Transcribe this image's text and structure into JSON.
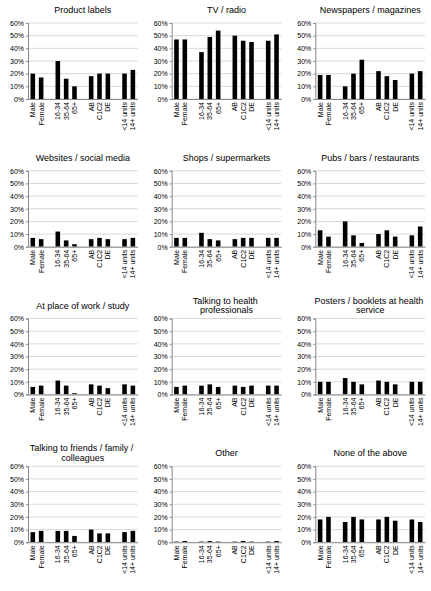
{
  "chart_data": [
    {
      "type": "bar",
      "title": "Product labels",
      "categories": [
        "Male",
        "Female",
        null,
        "16-34",
        "35-64",
        "65+",
        null,
        "AB",
        "C1C2",
        "DE",
        null,
        "<14 units",
        "14+ units"
      ],
      "values": [
        20,
        17,
        null,
        30,
        16,
        10,
        null,
        18,
        20,
        20,
        null,
        20,
        23
      ],
      "color": "#000000",
      "ylim": [
        0,
        60
      ],
      "yticks": [
        {
          "value": 0,
          "label": "0%"
        },
        {
          "value": 10,
          "label": "10%"
        },
        {
          "value": 20,
          "label": "20%"
        },
        {
          "value": 30,
          "label": "30%"
        },
        {
          "value": 40,
          "label": "40%"
        },
        {
          "value": 50,
          "label": "50%"
        },
        {
          "value": 60,
          "label": "60%"
        }
      ],
      "grid": true
    },
    {
      "type": "bar",
      "title": "TV / radio",
      "categories": [
        "Male",
        "Female",
        null,
        "16-34",
        "35-64",
        "65+",
        null,
        "AB",
        "C1C2",
        "DE",
        null,
        "<14 units",
        "14+ units"
      ],
      "values": [
        47,
        47,
        null,
        37,
        49,
        54,
        null,
        50,
        46,
        45,
        null,
        46,
        51
      ],
      "color": "#000000",
      "ylim": [
        0,
        60
      ],
      "yticks": [
        {
          "value": 0,
          "label": "0%"
        },
        {
          "value": 10,
          "label": "10%"
        },
        {
          "value": 20,
          "label": "20%"
        },
        {
          "value": 30,
          "label": "30%"
        },
        {
          "value": 40,
          "label": "40%"
        },
        {
          "value": 50,
          "label": "50%"
        },
        {
          "value": 60,
          "label": "60%"
        }
      ],
      "grid": true
    },
    {
      "type": "bar",
      "title": "Newspapers / magazines",
      "categories": [
        "Male",
        "Female",
        null,
        "16-34",
        "35-64",
        "65+",
        null,
        "AB",
        "C1C2",
        "DE",
        null,
        "<14 units",
        "14+ units"
      ],
      "values": [
        19,
        19,
        null,
        10,
        20,
        31,
        null,
        22,
        18,
        15,
        null,
        20,
        22
      ],
      "color": "#000000",
      "ylim": [
        0,
        60
      ],
      "yticks": [
        {
          "value": 0,
          "label": "0%"
        },
        {
          "value": 10,
          "label": "10%"
        },
        {
          "value": 20,
          "label": "20%"
        },
        {
          "value": 30,
          "label": "30%"
        },
        {
          "value": 40,
          "label": "40%"
        },
        {
          "value": 50,
          "label": "50%"
        },
        {
          "value": 60,
          "label": "60%"
        }
      ],
      "grid": true
    },
    {
      "type": "bar",
      "title": "Websites / social media",
      "categories": [
        "Male",
        "Female",
        null,
        "16-34",
        "35-64",
        "65+",
        null,
        "AB",
        "C1C2",
        "DE",
        null,
        "<14 units",
        "14+ units"
      ],
      "values": [
        7,
        6,
        null,
        12,
        5,
        2,
        null,
        6,
        7,
        6,
        null,
        6,
        7
      ],
      "color": "#000000",
      "ylim": [
        0,
        60
      ],
      "yticks": [
        {
          "value": 0,
          "label": "0%"
        },
        {
          "value": 10,
          "label": "10%"
        },
        {
          "value": 20,
          "label": "20%"
        },
        {
          "value": 30,
          "label": "30%"
        },
        {
          "value": 40,
          "label": "40%"
        },
        {
          "value": 50,
          "label": "50%"
        },
        {
          "value": 60,
          "label": "60%"
        }
      ],
      "grid": true
    },
    {
      "type": "bar",
      "title": "Shops / supermarkets",
      "categories": [
        "Male",
        "Female",
        null,
        "16-34",
        "35-64",
        "65+",
        null,
        "AB",
        "C1C2",
        "DE",
        null,
        "<14 units",
        "14+ units"
      ],
      "values": [
        7,
        7,
        null,
        11,
        6,
        5,
        null,
        6,
        7,
        7,
        null,
        7,
        7
      ],
      "color": "#000000",
      "ylim": [
        0,
        60
      ],
      "yticks": [
        {
          "value": 0,
          "label": "0%"
        },
        {
          "value": 10,
          "label": "10%"
        },
        {
          "value": 20,
          "label": "20%"
        },
        {
          "value": 30,
          "label": "30%"
        },
        {
          "value": 40,
          "label": "40%"
        },
        {
          "value": 50,
          "label": "50%"
        },
        {
          "value": 60,
          "label": "60%"
        }
      ],
      "grid": true
    },
    {
      "type": "bar",
      "title": "Pubs / bars / restaurants",
      "categories": [
        "Male",
        "Female",
        null,
        "16-34",
        "35-64",
        "65+",
        null,
        "AB",
        "C1C2",
        "DE",
        null,
        "<14 units",
        "14+ units"
      ],
      "values": [
        13,
        8,
        null,
        20,
        9,
        3,
        null,
        10,
        13,
        8,
        null,
        9,
        16
      ],
      "color": "#000000",
      "ylim": [
        0,
        60
      ],
      "yticks": [
        {
          "value": 0,
          "label": "0%"
        },
        {
          "value": 10,
          "label": "10%"
        },
        {
          "value": 20,
          "label": "20%"
        },
        {
          "value": 30,
          "label": "30%"
        },
        {
          "value": 40,
          "label": "40%"
        },
        {
          "value": 50,
          "label": "50%"
        },
        {
          "value": 60,
          "label": "60%"
        }
      ],
      "grid": true
    },
    {
      "type": "bar",
      "title": "At place of work / study",
      "categories": [
        "Male",
        "Female",
        null,
        "16-34",
        "35-64",
        "65+",
        null,
        "AB",
        "C1C2",
        "DE",
        null,
        "<14 units",
        "14+ units"
      ],
      "values": [
        6,
        7,
        null,
        11,
        7,
        1,
        null,
        8,
        7,
        5,
        null,
        8,
        7
      ],
      "color": "#000000",
      "ylim": [
        0,
        60
      ],
      "yticks": [
        {
          "value": 0,
          "label": "0%"
        },
        {
          "value": 10,
          "label": "10%"
        },
        {
          "value": 20,
          "label": "20%"
        },
        {
          "value": 30,
          "label": "30%"
        },
        {
          "value": 40,
          "label": "40%"
        },
        {
          "value": 50,
          "label": "50%"
        },
        {
          "value": 60,
          "label": "60%"
        }
      ],
      "grid": true
    },
    {
      "type": "bar",
      "title": "Talking to health professionals",
      "categories": [
        "Male",
        "Female",
        null,
        "16-34",
        "35-64",
        "65+",
        null,
        "AB",
        "C1C2",
        "DE",
        null,
        "<14 units",
        "14+ units"
      ],
      "values": [
        6,
        7,
        null,
        7,
        8,
        6,
        null,
        7,
        6,
        7,
        null,
        7,
        7
      ],
      "color": "#000000",
      "ylim": [
        0,
        60
      ],
      "yticks": [
        {
          "value": 0,
          "label": "0%"
        },
        {
          "value": 10,
          "label": "10%"
        },
        {
          "value": 20,
          "label": "20%"
        },
        {
          "value": 30,
          "label": "30%"
        },
        {
          "value": 40,
          "label": "40%"
        },
        {
          "value": 50,
          "label": "50%"
        },
        {
          "value": 60,
          "label": "60%"
        }
      ],
      "grid": true
    },
    {
      "type": "bar",
      "title": "Posters / booklets at health service",
      "categories": [
        "Male",
        "Female",
        null,
        "16-34",
        "35-64",
        "65+",
        null,
        "AB",
        "C1C2",
        "DE",
        null,
        "<14 units",
        "14+ units"
      ],
      "values": [
        10,
        10,
        null,
        13,
        10,
        8,
        null,
        11,
        10,
        8,
        null,
        10,
        10
      ],
      "color": "#000000",
      "ylim": [
        0,
        60
      ],
      "yticks": [
        {
          "value": 0,
          "label": "0%"
        },
        {
          "value": 10,
          "label": "10%"
        },
        {
          "value": 20,
          "label": "20%"
        },
        {
          "value": 30,
          "label": "30%"
        },
        {
          "value": 40,
          "label": "40%"
        },
        {
          "value": 50,
          "label": "50%"
        },
        {
          "value": 60,
          "label": "60%"
        }
      ],
      "grid": true
    },
    {
      "type": "bar",
      "title": "Talking to friends / family / colleagues",
      "categories": [
        "Male",
        "Female",
        null,
        "16-34",
        "35-64",
        "65+",
        null,
        "AB",
        "C1C2",
        "DE",
        null,
        "<14 units",
        "14+ units"
      ],
      "values": [
        8,
        9,
        null,
        9,
        9,
        5,
        null,
        10,
        7,
        7,
        null,
        8,
        9
      ],
      "color": "#000000",
      "ylim": [
        0,
        60
      ],
      "yticks": [
        {
          "value": 0,
          "label": "0%"
        },
        {
          "value": 10,
          "label": "10%"
        },
        {
          "value": 20,
          "label": "20%"
        },
        {
          "value": 30,
          "label": "30%"
        },
        {
          "value": 40,
          "label": "40%"
        },
        {
          "value": 50,
          "label": "50%"
        },
        {
          "value": 60,
          "label": "60%"
        }
      ],
      "grid": true
    },
    {
      "type": "bar",
      "title": "Other",
      "categories": [
        "Male",
        "Female",
        null,
        "16-34",
        "35-64",
        "65+",
        null,
        "AB",
        "C1C2",
        "DE",
        null,
        "<14 units",
        "14+ units"
      ],
      "values": [
        0.5,
        1,
        null,
        0.5,
        1,
        0.5,
        null,
        0.5,
        1,
        0.5,
        null,
        0.5,
        1
      ],
      "color": "#000000",
      "ylim": [
        0,
        60
      ],
      "yticks": [
        {
          "value": 0,
          "label": "0%"
        },
        {
          "value": 10,
          "label": "10%"
        },
        {
          "value": 20,
          "label": "20%"
        },
        {
          "value": 30,
          "label": "30%"
        },
        {
          "value": 40,
          "label": "40%"
        },
        {
          "value": 50,
          "label": "50%"
        },
        {
          "value": 60,
          "label": "60%"
        }
      ],
      "grid": true
    },
    {
      "type": "bar",
      "title": "None of the above",
      "categories": [
        "Male",
        "Female",
        null,
        "16-34",
        "35-64",
        "65+",
        null,
        "AB",
        "C1C2",
        "DE",
        null,
        "<14 units",
        "14+ units"
      ],
      "values": [
        18,
        20,
        null,
        16,
        20,
        18,
        null,
        18,
        20,
        17,
        null,
        18,
        16
      ],
      "color": "#000000",
      "ylim": [
        0,
        60
      ],
      "yticks": [
        {
          "value": 0,
          "label": "0%"
        },
        {
          "value": 10,
          "label": "10%"
        },
        {
          "value": 20,
          "label": "20%"
        },
        {
          "value": 30,
          "label": "30%"
        },
        {
          "value": 40,
          "label": "40%"
        },
        {
          "value": 50,
          "label": "50%"
        },
        {
          "value": 60,
          "label": "60%"
        }
      ],
      "grid": true
    }
  ]
}
